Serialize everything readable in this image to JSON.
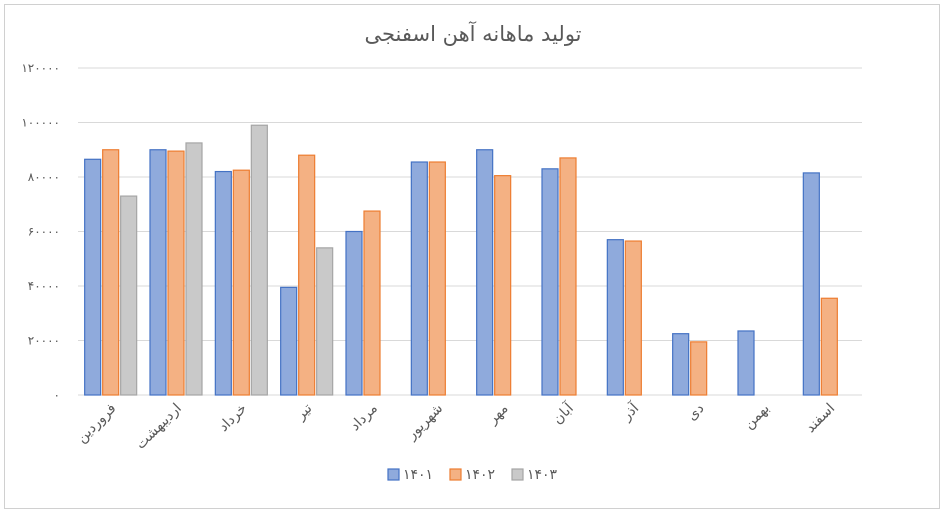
{
  "chart_data": {
    "type": "bar",
    "title": "تولید ماهانه آهن اسفنجی",
    "categories": [
      "فروردین",
      "اردیبهشت",
      "خرداد",
      "تیر",
      "مرداد",
      "شهریور",
      "مهر",
      "آبان",
      "آذر",
      "دی",
      "بهمن",
      "اسفند"
    ],
    "series": [
      {
        "name": "۱۴۰۱",
        "color": "#8FAADC",
        "stroke": "#4472C4",
        "values": [
          86500,
          90000,
          82000,
          39500,
          60000,
          85500,
          90000,
          83000,
          57000,
          22500,
          23500,
          81500
        ]
      },
      {
        "name": "۱۴۰۲",
        "color": "#F4B183",
        "stroke": "#ED7D31",
        "values": [
          90000,
          89500,
          82500,
          88000,
          67500,
          85500,
          80500,
          87000,
          56500,
          19500,
          null,
          35500
        ]
      },
      {
        "name": "۱۴۰۳",
        "color": "#C9C9C9",
        "stroke": "#A5A5A5",
        "values": [
          73000,
          92500,
          99000,
          54000,
          null,
          null,
          null,
          null,
          null,
          null,
          null,
          null
        ]
      }
    ],
    "ylim": [
      0,
      120000
    ],
    "yticks": [
      0,
      20000,
      40000,
      60000,
      80000,
      100000,
      120000
    ],
    "ytick_labels": [
      "۰",
      "۲۰۰۰۰",
      "۴۰۰۰۰",
      "۶۰۰۰۰",
      "۸۰۰۰۰",
      "۱۰۰۰۰۰",
      "۱۲۰۰۰۰"
    ],
    "grid": true,
    "legend_position": "bottom"
  }
}
